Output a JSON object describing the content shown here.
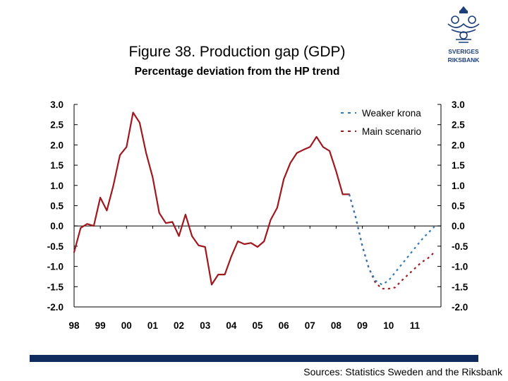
{
  "header": {
    "title": "Figure 38. Production gap (GDP)",
    "subtitle": "Percentage deviation from the HP trend"
  },
  "logo": {
    "text_line1": "SVERIGES",
    "text_line2": "RIKSBANK",
    "color": "#1c3f7a"
  },
  "footer": {
    "source": "Sources: Statistics Sweden and the Riksbank",
    "bar_color": "#0f2a5c"
  },
  "chart_data": {
    "type": "line",
    "x_tick_labels": [
      "98",
      "99",
      "00",
      "01",
      "02",
      "03",
      "04",
      "05",
      "06",
      "07",
      "08",
      "09",
      "10",
      "11"
    ],
    "y_tick_labels": [
      "3.0",
      "2.5",
      "2.0",
      "1.5",
      "1.0",
      "0.5",
      "0.0",
      "-0.5",
      "-1.0",
      "-1.5",
      "-2.0"
    ],
    "ylim": [
      -2.0,
      3.0
    ],
    "xlim": [
      1998.0,
      2012.0
    ],
    "grid": false,
    "legend_position": "top-right",
    "series": [
      {
        "name": "Main scenario",
        "color": "#a0181e",
        "style": "solid",
        "x": [
          1998.0,
          1998.25,
          1998.5,
          1998.75,
          1999.0,
          1999.25,
          1999.5,
          1999.75,
          2000.0,
          2000.25,
          2000.5,
          2000.75,
          2001.0,
          2001.25,
          2001.5,
          2001.75,
          2002.0,
          2002.25,
          2002.5,
          2002.75,
          2003.0,
          2003.25,
          2003.5,
          2003.75,
          2004.0,
          2004.25,
          2004.5,
          2004.75,
          2005.0,
          2005.25,
          2005.5,
          2005.75,
          2006.0,
          2006.25,
          2006.5,
          2006.75,
          2007.0,
          2007.25,
          2007.5,
          2007.75,
          2008.0,
          2008.25,
          2008.5
        ],
        "values": [
          -0.65,
          -0.05,
          0.05,
          0.0,
          0.7,
          0.38,
          1.0,
          1.75,
          1.95,
          2.8,
          2.55,
          1.8,
          1.2,
          0.32,
          0.07,
          0.1,
          -0.25,
          0.28,
          -0.25,
          -0.48,
          -0.52,
          -1.45,
          -1.2,
          -1.2,
          -0.75,
          -0.38,
          -0.45,
          -0.42,
          -0.52,
          -0.38,
          0.15,
          0.45,
          1.15,
          1.55,
          1.8,
          1.88,
          1.95,
          2.2,
          1.95,
          1.85,
          1.35,
          0.78,
          0.78
        ]
      },
      {
        "name": "Main scenario",
        "color": "#a0181e",
        "style": "dashed",
        "x": [
          2008.5,
          2008.75,
          2009.0,
          2009.25,
          2009.5,
          2009.75,
          2010.0,
          2010.25,
          2010.5,
          2010.75,
          2011.0,
          2011.25,
          2011.5,
          2011.75
        ],
        "values": [
          0.78,
          0.2,
          -0.5,
          -1.05,
          -1.4,
          -1.55,
          -1.55,
          -1.52,
          -1.35,
          -1.2,
          -1.05,
          -0.9,
          -0.8,
          -0.65
        ]
      },
      {
        "name": "Weaker krona",
        "color": "#2e78b8",
        "style": "dashed",
        "x": [
          2008.5,
          2008.75,
          2009.0,
          2009.25,
          2009.5,
          2009.75,
          2010.0,
          2010.25,
          2010.5,
          2010.75,
          2011.0,
          2011.25,
          2011.5,
          2011.75
        ],
        "values": [
          0.78,
          0.2,
          -0.5,
          -1.05,
          -1.35,
          -1.45,
          -1.35,
          -1.15,
          -0.95,
          -0.75,
          -0.55,
          -0.35,
          -0.18,
          -0.02
        ]
      }
    ],
    "legend": [
      {
        "label": "Weaker krona",
        "color": "#2e78b8",
        "style": "dashed"
      },
      {
        "label": "Main scenario",
        "color": "#a0181e",
        "style": "dashed"
      }
    ]
  }
}
